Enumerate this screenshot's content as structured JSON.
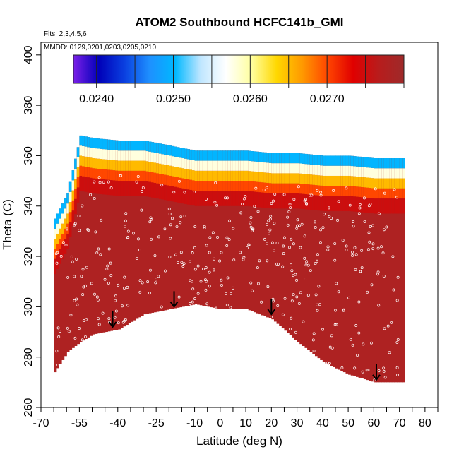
{
  "chart_data": {
    "type": "heatmap",
    "title": "ATOM2 Southbound HCFC141b_GMI",
    "subtitle_flights": "Flts: 2,3,4,5,6",
    "subtitle_dates": "MMDD: 0129,0201,0203,0205,0210",
    "xlabel": "Latitude (deg N)",
    "ylabel": "Theta (C)",
    "xlim": [
      -70,
      85
    ],
    "ylim": [
      260,
      405
    ],
    "x_tick_values": [
      -70,
      -65,
      -60,
      -55,
      -50,
      -45,
      -40,
      -35,
      -30,
      -25,
      -20,
      -15,
      -10,
      -5,
      0,
      5,
      10,
      15,
      20,
      25,
      30,
      35,
      40,
      45,
      50,
      55,
      60,
      65,
      70,
      75,
      80,
      85
    ],
    "x_tick_labels": [
      "-70",
      "-55",
      "-40",
      "-25",
      "-10",
      "0",
      "10",
      "20",
      "30",
      "40",
      "50",
      "60",
      "70",
      "80"
    ],
    "x_tick_label_values": [
      -70,
      -55,
      -40,
      -25,
      -10,
      0,
      10,
      20,
      30,
      40,
      50,
      60,
      70,
      80
    ],
    "y_ticks": [
      260,
      280,
      300,
      320,
      340,
      360,
      380,
      400
    ],
    "colorbar": {
      "range": [
        0.0237,
        0.028
      ],
      "tick_values": [
        0.024,
        0.025,
        0.026,
        0.027
      ],
      "tick_labels": [
        "0.0240",
        "0.0250",
        "0.0260",
        "0.0270"
      ],
      "colors": [
        "#7a1fe8",
        "#0000b8",
        "#0a3fe0",
        "#1e90ff",
        "#00b8ff",
        "#bfe6ff",
        "#ffffff",
        "#ffffa0",
        "#ffd700",
        "#ff9900",
        "#ff4500",
        "#e00000",
        "#b81c1c",
        "#9e2a2a"
      ]
    },
    "field": {
      "bottom_boundary": [
        [
          -65,
          274
        ],
        [
          -60,
          282
        ],
        [
          -55,
          286
        ],
        [
          -50,
          289
        ],
        [
          -40,
          291
        ],
        [
          -30,
          297
        ],
        [
          -20,
          299
        ],
        [
          -10,
          301
        ],
        [
          0,
          299
        ],
        [
          10,
          299
        ],
        [
          20,
          295
        ],
        [
          30,
          286
        ],
        [
          40,
          278
        ],
        [
          50,
          273
        ],
        [
          60,
          270
        ],
        [
          72,
          270
        ]
      ],
      "top_boundary": [
        [
          -65,
          335
        ],
        [
          -60,
          345
        ],
        [
          -55,
          368
        ],
        [
          -50,
          367
        ],
        [
          -40,
          366
        ],
        [
          -30,
          366
        ],
        [
          -20,
          364
        ],
        [
          -10,
          362
        ],
        [
          0,
          362
        ],
        [
          10,
          362
        ],
        [
          20,
          361
        ],
        [
          30,
          361
        ],
        [
          40,
          360
        ],
        [
          50,
          360
        ],
        [
          60,
          359
        ],
        [
          72,
          359
        ]
      ],
      "value_bands": [
        {
          "lower_theta_offset": 0,
          "value": 0.0278
        },
        {
          "below_top": 22,
          "value": 0.0275
        },
        {
          "below_top": 16,
          "value": 0.027
        },
        {
          "below_top": 12,
          "value": 0.0265
        },
        {
          "below_top": 8,
          "value": 0.0258
        },
        {
          "below_top": 4,
          "value": 0.025
        },
        {
          "below_top": 0,
          "value": 0.0242
        }
      ]
    },
    "markers_arrows": [
      {
        "lat": -42,
        "theta": 292
      },
      {
        "lat": -18,
        "theta": 300
      },
      {
        "lat": 20,
        "theta": 297
      },
      {
        "lat": 61,
        "theta": 271
      }
    ]
  }
}
